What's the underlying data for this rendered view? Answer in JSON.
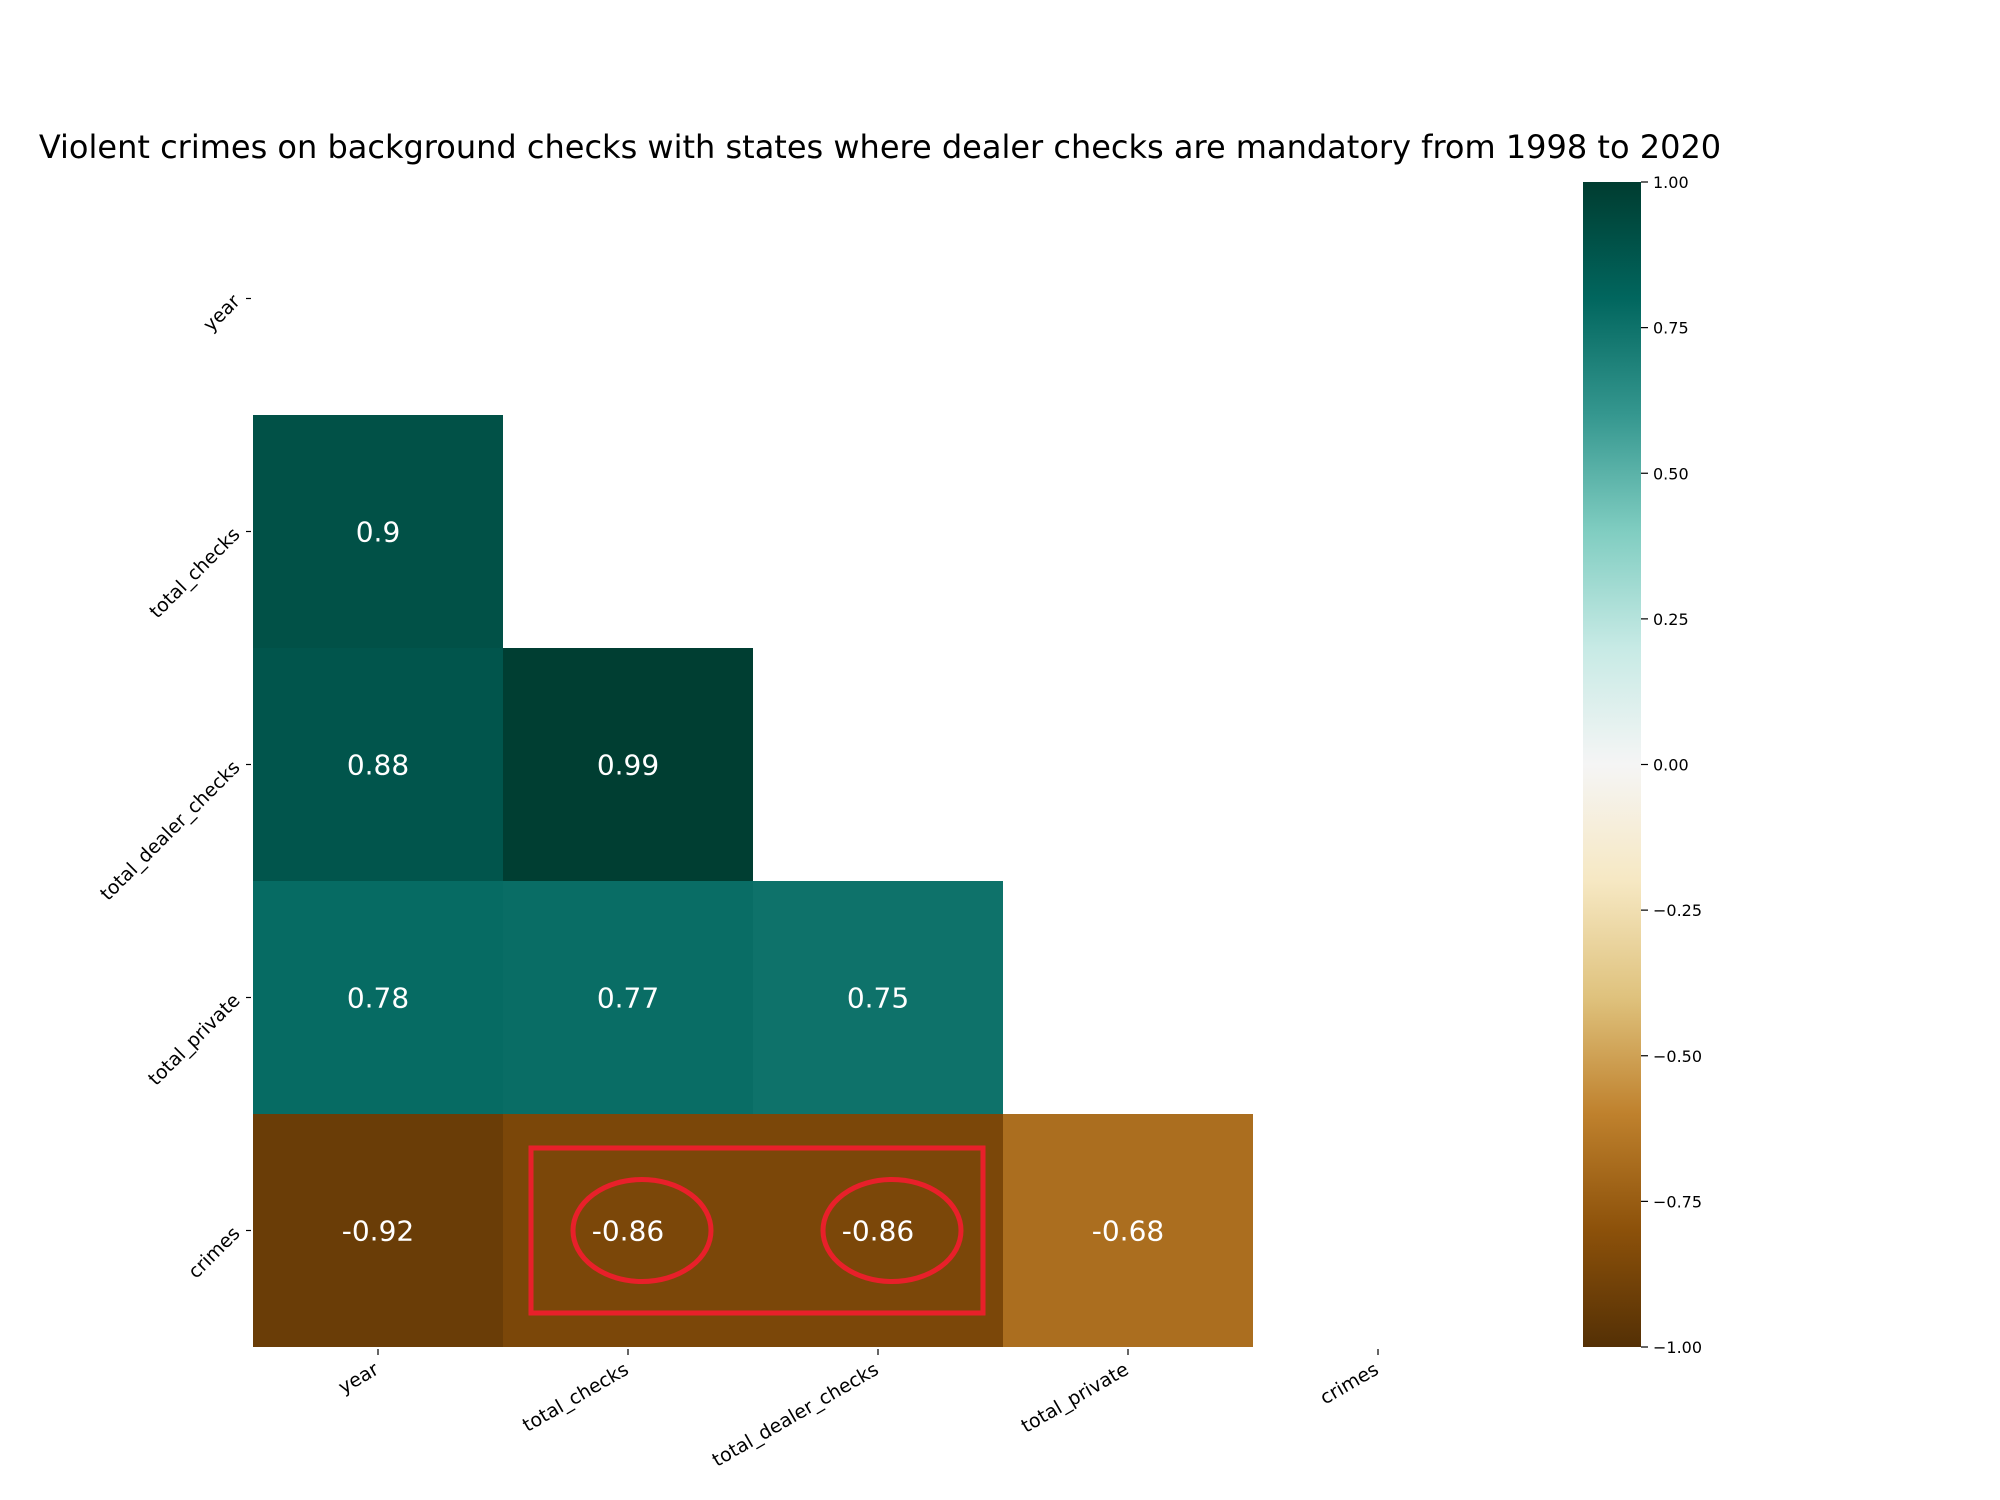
{
  "chart_data": {
    "type": "heatmap",
    "title": "Violent crimes on background checks with states where dealer checks are mandatory from 1998 to 2020",
    "variables": [
      "year",
      "total_checks",
      "total_dealer_checks",
      "total_private",
      "crimes"
    ],
    "mask": "upper-triangle-including-diagonal",
    "cells": [
      {
        "row": "total_checks",
        "col": "year",
        "value": 0.9
      },
      {
        "row": "total_dealer_checks",
        "col": "year",
        "value": 0.88
      },
      {
        "row": "total_dealer_checks",
        "col": "total_checks",
        "value": 0.99
      },
      {
        "row": "total_private",
        "col": "year",
        "value": 0.78
      },
      {
        "row": "total_private",
        "col": "total_checks",
        "value": 0.77
      },
      {
        "row": "total_private",
        "col": "total_dealer_checks",
        "value": 0.75
      },
      {
        "row": "crimes",
        "col": "year",
        "value": -0.92
      },
      {
        "row": "crimes",
        "col": "total_checks",
        "value": -0.86
      },
      {
        "row": "crimes",
        "col": "total_dealer_checks",
        "value": -0.86
      },
      {
        "row": "crimes",
        "col": "total_private",
        "value": -0.68
      }
    ],
    "colorbar": {
      "range": [
        -1,
        1
      ],
      "ticks": [
        1.0,
        0.75,
        0.5,
        0.25,
        0.0,
        -0.25,
        -0.5,
        -0.75,
        -1.0
      ],
      "tick_labels": [
        "1.00",
        "0.75",
        "0.50",
        "0.25",
        "0.00",
        "−0.25",
        "−0.50",
        "−0.75",
        "−1.00"
      ],
      "colormap": "BrBG",
      "stops": [
        "#543005",
        "#8c510a",
        "#bf812d",
        "#dfc27d",
        "#f6e8c3",
        "#f5f5f5",
        "#c7eae5",
        "#80cdc1",
        "#35978f",
        "#01665e",
        "#003c30"
      ]
    },
    "annotations": [
      {
        "type": "rectangle",
        "color": "#e8202a",
        "cells": [
          {
            "row": "crimes",
            "col": "total_checks"
          },
          {
            "row": "crimes",
            "col": "total_dealer_checks"
          }
        ]
      },
      {
        "type": "ellipse",
        "color": "#e8202a",
        "cell": {
          "row": "crimes",
          "col": "total_checks"
        }
      },
      {
        "type": "ellipse",
        "color": "#e8202a",
        "cell": {
          "row": "crimes",
          "col": "total_dealer_checks"
        }
      }
    ]
  }
}
